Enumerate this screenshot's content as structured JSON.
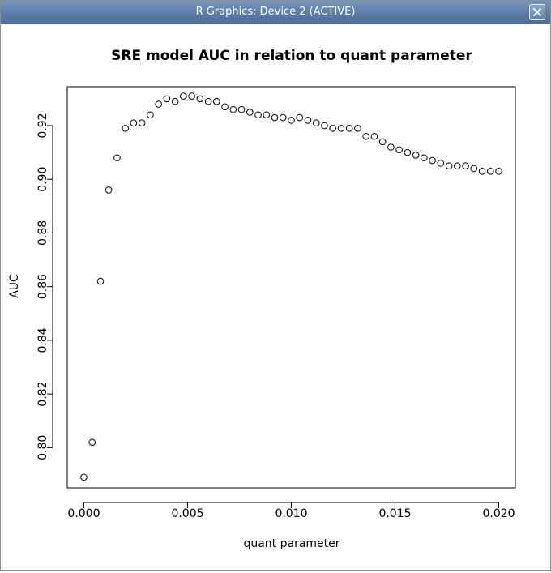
{
  "window": {
    "title": "R Graphics: Device 2 (ACTIVE)",
    "close_icon": "close-icon"
  },
  "chart_data": {
    "type": "scatter",
    "title": "SRE model AUC in relation to quant parameter",
    "xlabel": "quant parameter",
    "ylabel": "AUC",
    "xlim": [
      -0.0008,
      0.0208
    ],
    "ylim": [
      0.785,
      0.9345
    ],
    "xticks": [
      0.0,
      0.005,
      0.01,
      0.015,
      0.02
    ],
    "xtick_labels": [
      "0.000",
      "0.005",
      "0.010",
      "0.015",
      "0.020"
    ],
    "yticks": [
      0.8,
      0.82,
      0.84,
      0.86,
      0.88,
      0.9,
      0.92
    ],
    "ytick_labels": [
      "0.80",
      "0.82",
      "0.84",
      "0.86",
      "0.88",
      "0.90",
      "0.92"
    ],
    "grid": false,
    "point_style": "open-circle",
    "x": [
      0.0,
      0.0004,
      0.0008,
      0.0012,
      0.0016,
      0.002,
      0.0024,
      0.0028,
      0.0032,
      0.0036,
      0.004,
      0.0044,
      0.0048,
      0.0052,
      0.0056,
      0.006,
      0.0064,
      0.0068,
      0.0072,
      0.0076,
      0.008,
      0.0084,
      0.0088,
      0.0092,
      0.0096,
      0.01,
      0.0104,
      0.0108,
      0.0112,
      0.0116,
      0.012,
      0.0124,
      0.0128,
      0.0132,
      0.0136,
      0.014,
      0.0144,
      0.0148,
      0.0152,
      0.0156,
      0.016,
      0.0164,
      0.0168,
      0.0172,
      0.0176,
      0.018,
      0.0184,
      0.0188,
      0.0192,
      0.0196,
      0.02
    ],
    "y": [
      0.789,
      0.802,
      0.862,
      0.896,
      0.908,
      0.919,
      0.921,
      0.921,
      0.924,
      0.928,
      0.93,
      0.929,
      0.931,
      0.931,
      0.93,
      0.929,
      0.929,
      0.927,
      0.926,
      0.926,
      0.925,
      0.924,
      0.924,
      0.923,
      0.923,
      0.922,
      0.923,
      0.922,
      0.921,
      0.92,
      0.919,
      0.919,
      0.919,
      0.919,
      0.916,
      0.916,
      0.914,
      0.912,
      0.911,
      0.91,
      0.909,
      0.908,
      0.907,
      0.906,
      0.905,
      0.905,
      0.905,
      0.904,
      0.903,
      0.903,
      0.903
    ]
  }
}
